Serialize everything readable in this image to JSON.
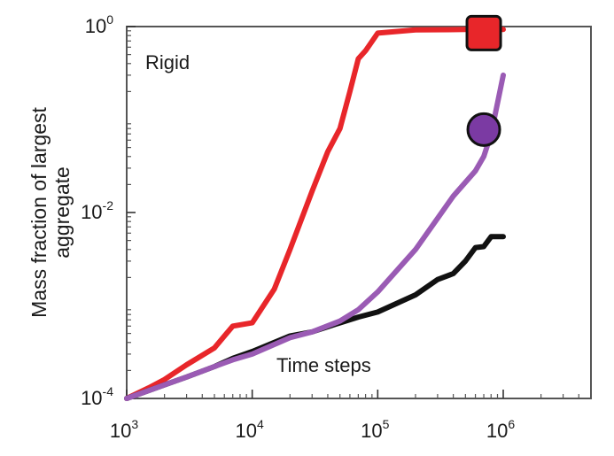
{
  "chart_data": {
    "type": "line",
    "xscale": "log",
    "yscale": "log",
    "xlim": [
      1000,
      5000000
    ],
    "ylim": [
      0.0001,
      1
    ],
    "ylabel": [
      "Mass fraction of largest",
      "aggregate"
    ],
    "xlabel": "",
    "xticks": [
      {
        "value": 1000,
        "base": "10",
        "exp": "3"
      },
      {
        "value": 10000,
        "base": "10",
        "exp": "4"
      },
      {
        "value": 100000,
        "base": "10",
        "exp": "5"
      },
      {
        "value": 1000000,
        "base": "10",
        "exp": "6"
      }
    ],
    "yticks": [
      {
        "value": 0.0001,
        "base": "10",
        "exp": "-4"
      },
      {
        "value": 0.01,
        "base": "10",
        "exp": "-2"
      },
      {
        "value": 1,
        "base": "10",
        "exp": "0"
      }
    ],
    "annotations": {
      "rigid_label": "Rigid",
      "time_label": "Time steps"
    },
    "series": [
      {
        "name": "red",
        "color": "#e8262a",
        "marker": "square",
        "marker_point": [
          700000,
          0.85
        ],
        "x": [
          1000,
          1500,
          2000,
          3000,
          5000,
          7000,
          10000,
          15000,
          20000,
          30000,
          40000,
          50000,
          60000,
          70000,
          80000,
          100000,
          200000,
          500000,
          1000000
        ],
        "y": [
          0.0001,
          0.00013,
          0.00016,
          0.00023,
          0.00035,
          0.0006,
          0.00065,
          0.0015,
          0.004,
          0.017,
          0.045,
          0.08,
          0.2,
          0.45,
          0.55,
          0.85,
          0.92,
          0.93,
          0.93
        ]
      },
      {
        "name": "purple",
        "color": "#9a5bb4",
        "marker": "circle",
        "marker_point": [
          700000,
          0.078
        ],
        "x": [
          1000,
          2000,
          3000,
          5000,
          7000,
          10000,
          20000,
          30000,
          50000,
          70000,
          100000,
          200000,
          400000,
          600000,
          700000,
          800000,
          900000,
          1000000
        ],
        "y": [
          0.0001,
          0.00014,
          0.00017,
          0.00022,
          0.00026,
          0.0003,
          0.00045,
          0.00052,
          0.00068,
          0.0009,
          0.0014,
          0.004,
          0.015,
          0.028,
          0.04,
          0.07,
          0.15,
          0.3
        ]
      },
      {
        "name": "black",
        "color": "#111111",
        "marker": "none",
        "x": [
          1000,
          2000,
          3000,
          5000,
          7000,
          10000,
          20000,
          30000,
          50000,
          70000,
          100000,
          200000,
          300000,
          400000,
          500000,
          600000,
          700000,
          800000,
          1000000
        ],
        "y": [
          0.0001,
          0.00014,
          0.00017,
          0.00022,
          0.00027,
          0.00032,
          0.00047,
          0.00052,
          0.00065,
          0.00075,
          0.00085,
          0.0013,
          0.0019,
          0.0022,
          0.003,
          0.0042,
          0.0043,
          0.0055,
          0.0055
        ]
      }
    ]
  }
}
